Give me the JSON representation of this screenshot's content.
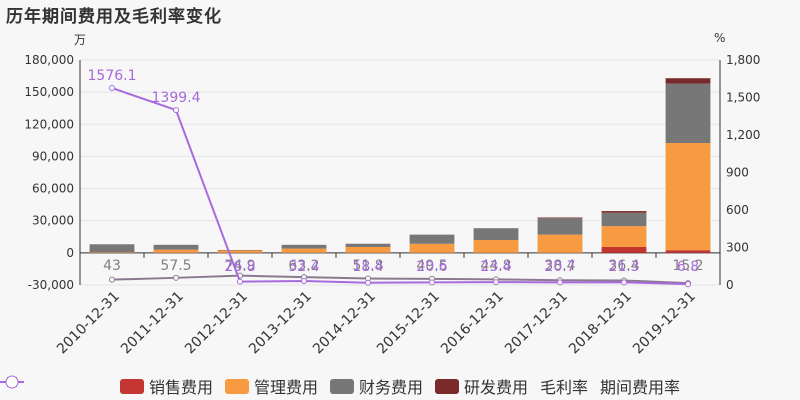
{
  "title": "历年期间费用及毛利率变化",
  "left_unit": "万",
  "right_unit": "%",
  "legend": [
    {
      "name": "销售费用",
      "kind": "bar",
      "color": "#c23531"
    },
    {
      "name": "管理费用",
      "kind": "bar",
      "color": "#f79a42"
    },
    {
      "name": "财务费用",
      "kind": "bar",
      "color": "#777777"
    },
    {
      "name": "研发费用",
      "kind": "bar",
      "color": "#7a2a2a"
    },
    {
      "name": "毛利率",
      "kind": "line",
      "color": "#8b7a8f"
    },
    {
      "name": "期间费用率",
      "kind": "line",
      "color": "#a86add"
    }
  ],
  "chart_data": {
    "type": "bar",
    "categories": [
      "2010-12-31",
      "2011-12-31",
      "2012-12-31",
      "2013-12-31",
      "2014-12-31",
      "2015-12-31",
      "2016-12-31",
      "2017-12-31",
      "2018-12-31",
      "2019-12-31"
    ],
    "left_axis": {
      "ylim": [
        -30000,
        180000
      ],
      "ticks": [
        "-30,000",
        "0",
        "30,000",
        "60,000",
        "90,000",
        "120,000",
        "150,000",
        "180,000"
      ]
    },
    "right_axis": {
      "ylim": [
        0,
        1800
      ],
      "ticks": [
        "0",
        "300",
        "600",
        "900",
        "1,200",
        "1,500",
        "1,800"
      ]
    },
    "series": [
      {
        "name": "销售费用",
        "axis": "left",
        "values": [
          0,
          0,
          0,
          0,
          0,
          0,
          0,
          0,
          5500,
          2500
        ]
      },
      {
        "name": "管理费用",
        "axis": "left",
        "values": [
          500,
          3000,
          2500,
          4000,
          5500,
          8500,
          12000,
          17000,
          19500,
          100000
        ]
      },
      {
        "name": "财务费用",
        "axis": "left",
        "values": [
          7500,
          4500,
          200,
          3500,
          3000,
          8500,
          11000,
          15500,
          12500,
          55500
        ]
      },
      {
        "name": "研发费用",
        "axis": "left",
        "values": [
          0,
          0,
          0,
          0,
          0,
          0,
          0,
          500,
          1500,
          5000
        ]
      },
      {
        "name": "毛利率",
        "axis": "right",
        "values": [
          43,
          57.5,
          74.9,
          63.2,
          51.8,
          49.5,
          44.8,
          38.4,
          36.4,
          15.2
        ],
        "labels": [
          "43",
          "57.5",
          "74.9",
          "63.2",
          "51.8",
          "49.5",
          "44.8",
          "38.4",
          "36.4",
          "15.2"
        ]
      },
      {
        "name": "期间费用率",
        "axis": "right",
        "values": [
          1576.1,
          1399.4,
          26.8,
          32.4,
          18.4,
          20.6,
          23.4,
          20.7,
          21.3,
          6.8
        ],
        "labels": [
          "1576.1",
          "1399.4",
          "26.8",
          "32.4",
          "18.4",
          "20.6",
          "23.4",
          "20.7",
          "21.3",
          "6.8"
        ]
      }
    ]
  }
}
